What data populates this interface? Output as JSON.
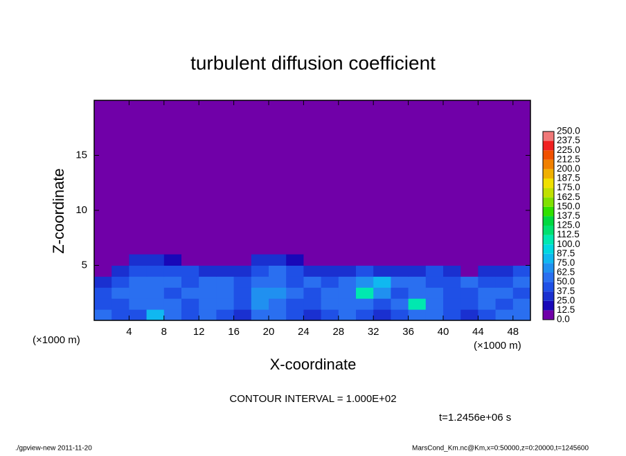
{
  "chart_data": {
    "type": "contour",
    "title": "turbulent diffusion coefficient",
    "x_label": "X-coordinate",
    "y_label": "Z-coordinate",
    "x_unit": "(×1000 m)",
    "y_unit": "(×1000 m)",
    "contour_note": "CONTOUR INTERVAL = 1.000E+02",
    "time_label": "t=1.2456e+06 s",
    "footer_left": "./gpview-new  2011-11-20",
    "footer_right": "MarsCond_Km.nc@Km,x=0:50000,z=0:20000,t=1245600",
    "xlim": [
      0,
      50
    ],
    "ylim": [
      0,
      20
    ],
    "xticks": [
      4,
      8,
      12,
      16,
      20,
      24,
      28,
      32,
      36,
      40,
      44,
      48
    ],
    "yticks": [
      5,
      10,
      15
    ],
    "x": [
      1,
      3,
      5,
      7,
      9,
      11,
      13,
      15,
      17,
      19,
      21,
      23,
      25,
      27,
      29,
      31,
      33,
      35,
      37,
      39,
      41,
      43,
      45,
      47,
      49
    ],
    "y": [
      0.5,
      1.5,
      2.5,
      3.5,
      4.5,
      5.5
    ],
    "values": [
      [
        50,
        45,
        40,
        75,
        60,
        40,
        55,
        45,
        35,
        60,
        55,
        40,
        35,
        45,
        50,
        40,
        35,
        45,
        50,
        60,
        40,
        35,
        45,
        50,
        60
      ],
      [
        45,
        40,
        50,
        60,
        55,
        45,
        60,
        50,
        40,
        65,
        60,
        45,
        40,
        50,
        55,
        55,
        45,
        50,
        110,
        55,
        45,
        40,
        50,
        45,
        55
      ],
      [
        40,
        50,
        55,
        50,
        45,
        50,
        55,
        60,
        45,
        70,
        65,
        50,
        45,
        55,
        60,
        110,
        70,
        45,
        60,
        50,
        40,
        45,
        55,
        50,
        45
      ],
      [
        35,
        45,
        60,
        50,
        55,
        45,
        50,
        55,
        40,
        55,
        60,
        45,
        50,
        45,
        55,
        65,
        75,
        55,
        50,
        45,
        40,
        50,
        45,
        40,
        50
      ],
      [
        0,
        30,
        45,
        40,
        45,
        40,
        35,
        35,
        30,
        45,
        50,
        40,
        30,
        30,
        35,
        40,
        35,
        35,
        30,
        40,
        35,
        0,
        30,
        30,
        40
      ],
      [
        0,
        0,
        25,
        25,
        20,
        0,
        0,
        0,
        0,
        30,
        30,
        20,
        0,
        0,
        0,
        0,
        0,
        0,
        0,
        0,
        0,
        0,
        0,
        0,
        0
      ]
    ],
    "colorbar": {
      "levels": [
        {
          "value": 0,
          "label": "0.0"
        },
        12.5,
        {
          "value": 25,
          "label": "25.0"
        },
        37.5,
        {
          "value": 50,
          "label": "50.0"
        },
        62.5,
        {
          "value": 75,
          "label": "75.0"
        },
        87.5,
        {
          "value": 100,
          "label": "100.0"
        },
        112.5,
        {
          "value": 125,
          "label": "125.0"
        },
        137.5,
        {
          "value": 150,
          "label": "150.0"
        },
        162.5,
        {
          "value": 175,
          "label": "175.0"
        },
        187.5,
        {
          "value": 200,
          "label": "200.0"
        },
        212.5,
        {
          "value": 225,
          "label": "225.0"
        },
        237.5,
        {
          "value": 250,
          "label": "250.0"
        }
      ],
      "colors": [
        "#7000a8",
        "#1808b8",
        "#1a30d0",
        "#1f50e6",
        "#2a6ff0",
        "#2090f0",
        "#10b8f0",
        "#00d8e0",
        "#00e8b0",
        "#00e070",
        "#00d840",
        "#30e000",
        "#80e000",
        "#c0e000",
        "#f0e000",
        "#f0b000",
        "#f08000",
        "#f05000",
        "#f02020",
        "#f07878"
      ]
    }
  }
}
